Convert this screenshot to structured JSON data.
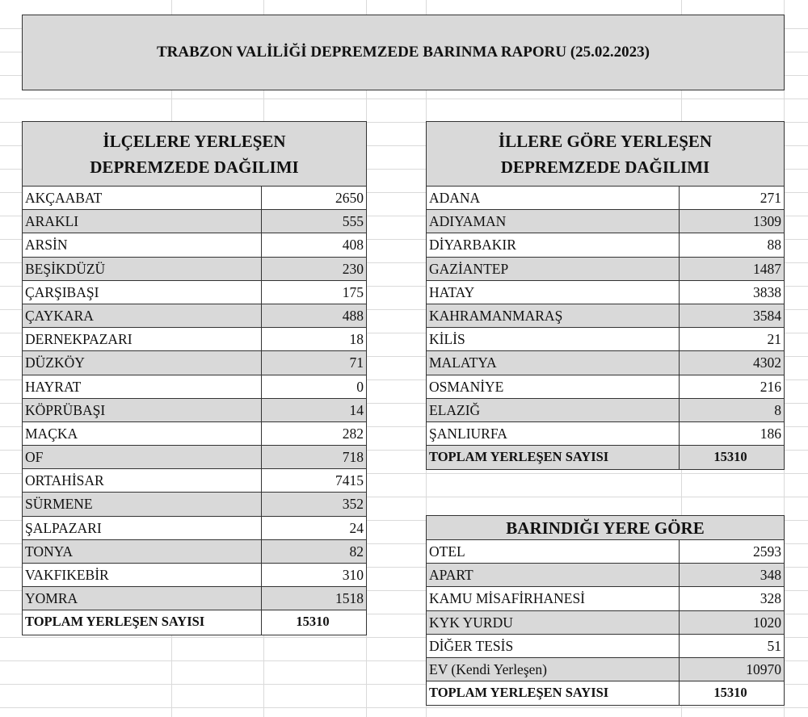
{
  "title": "TRABZON VALİLİĞİ DEPREMZEDE BARINMA RAPORU (25.02.2023)",
  "districts": {
    "heading": [
      "İLÇELERE YERLEŞEN",
      "DEPREMZEDE DAĞILIMI"
    ],
    "rows": [
      {
        "label": "AKÇAABAT",
        "value": "2650"
      },
      {
        "label": "ARAKLI",
        "value": "555"
      },
      {
        "label": "ARSİN",
        "value": "408"
      },
      {
        "label": "BEŞİKDÜZÜ",
        "value": "230"
      },
      {
        "label": "ÇARŞIBAŞI",
        "value": "175"
      },
      {
        "label": "ÇAYKARA",
        "value": "488"
      },
      {
        "label": "DERNEKPAZARI",
        "value": "18"
      },
      {
        "label": "DÜZKÖY",
        "value": "71"
      },
      {
        "label": "HAYRAT",
        "value": "0"
      },
      {
        "label": "KÖPRÜBAŞI",
        "value": "14"
      },
      {
        "label": "MAÇKA",
        "value": "282"
      },
      {
        "label": "OF",
        "value": "718"
      },
      {
        "label": "ORTAHİSAR",
        "value": "7415"
      },
      {
        "label": "SÜRMENE",
        "value": "352"
      },
      {
        "label": "ŞALPAZARI",
        "value": "24"
      },
      {
        "label": "TONYA",
        "value": "82"
      },
      {
        "label": "VAKFIKEBİR",
        "value": "310"
      },
      {
        "label": "YOMRA",
        "value": "1518"
      }
    ],
    "total": {
      "label": "TOPLAM YERLEŞEN SAYISI",
      "value": "15310"
    }
  },
  "provinces": {
    "heading": [
      "İLLERE GÖRE YERLEŞEN",
      "DEPREMZEDE DAĞILIMI"
    ],
    "rows": [
      {
        "label": "ADANA",
        "value": "271"
      },
      {
        "label": "ADIYAMAN",
        "value": "1309"
      },
      {
        "label": "DİYARBAKIR",
        "value": "88"
      },
      {
        "label": "GAZİANTEP",
        "value": "1487"
      },
      {
        "label": "HATAY",
        "value": "3838"
      },
      {
        "label": "KAHRAMANMARAŞ",
        "value": "3584"
      },
      {
        "label": "KİLİS",
        "value": "21"
      },
      {
        "label": "MALATYA",
        "value": "4302"
      },
      {
        "label": "OSMANİYE",
        "value": "216"
      },
      {
        "label": "ELAZIĞ",
        "value": "8"
      },
      {
        "label": "ŞANLIURFA",
        "value": "186"
      }
    ],
    "total": {
      "label": "TOPLAM YERLEŞEN SAYISI",
      "value": "15310"
    }
  },
  "shelter": {
    "heading": [
      "BARINDIĞI YERE GÖRE"
    ],
    "rows": [
      {
        "label": "OTEL",
        "value": "2593"
      },
      {
        "label": "APART",
        "value": "348"
      },
      {
        "label": "KAMU MİSAFİRHANESİ",
        "value": "328"
      },
      {
        "label": "KYK YURDU",
        "value": "1020"
      },
      {
        "label": "DİĞER TESİS",
        "value": "51"
      },
      {
        "label": "EV (Kendi Yerleşen)",
        "value": "10970"
      }
    ],
    "total": {
      "label": "TOPLAM YERLEŞEN SAYISI",
      "value": "15310"
    }
  }
}
